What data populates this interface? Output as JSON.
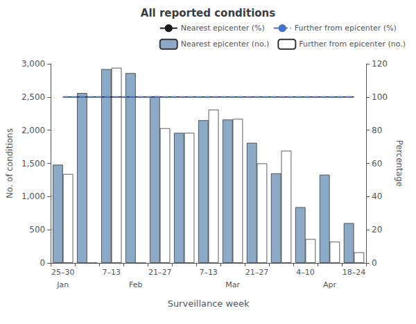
{
  "chart_data": {
    "type": "bar",
    "title": "All reported conditions",
    "xlabel": "Surveillance week",
    "ylabel": "No. of conditions",
    "y2label": "Percentage",
    "categories": [
      "25–30",
      null,
      "7–13",
      null,
      "21–27",
      null,
      "7–13",
      null,
      "21–27",
      null,
      "4–10",
      null,
      "18–24"
    ],
    "series": [
      {
        "name": "Nearest epicenter (%)",
        "type": "line",
        "axis": "y2",
        "color": "#1a1a1a",
        "line_style": "solid",
        "values": [
          100,
          100,
          100,
          100,
          100,
          100,
          100,
          100,
          100,
          100,
          100,
          100,
          100
        ]
      },
      {
        "name": "Further from epicenter (%)",
        "type": "line",
        "axis": "y2",
        "color": "#4472c4",
        "line_style": "dashed",
        "values": [
          100,
          100,
          100,
          100,
          100,
          100,
          100,
          100,
          100,
          100,
          100,
          100,
          100
        ]
      },
      {
        "name": "Nearest epicenter (no.)",
        "type": "bar",
        "color": "#8BAAC8",
        "values": [
          1480,
          2560,
          2920,
          2860,
          2510,
          1960,
          2150,
          2160,
          1810,
          1350,
          840,
          1330,
          600
        ]
      },
      {
        "name": "Further from epicenter (no.)",
        "type": "bar",
        "color": "#FFFFFF",
        "values": [
          1340,
          0,
          2940,
          0,
          2030,
          1960,
          2310,
          2170,
          1500,
          1690,
          360,
          320,
          160
        ]
      }
    ],
    "ylim": [
      0,
      3000
    ],
    "yticks": [
      0,
      500,
      1000,
      1500,
      2000,
      2500,
      3000
    ],
    "y2lim": [
      0,
      120
    ],
    "y2ticks": [
      0,
      20,
      40,
      60,
      80,
      100,
      120
    ],
    "annotations": [
      {
        "text": "Jan",
        "x": 0
      },
      {
        "text": "Feb",
        "x": 3
      },
      {
        "text": "Mar",
        "x": 7
      },
      {
        "text": "Apr",
        "x": 11
      }
    ],
    "grid": false,
    "legend": "upper right"
  }
}
